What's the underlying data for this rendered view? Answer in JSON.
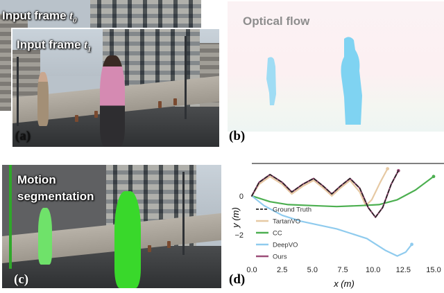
{
  "panels": {
    "a": {
      "label": "(a)",
      "frame0_prefix": "Input frame ",
      "frame0_var": "t",
      "frame0_sub": "0",
      "frame1_prefix": "Input frame ",
      "frame1_var": "t",
      "frame1_sub": "1"
    },
    "b": {
      "label": "(b)",
      "title": "Optical flow"
    },
    "c": {
      "label": "(c)",
      "title_line1": "Motion",
      "title_line2": "segmentation"
    },
    "d": {
      "label": "(d)"
    }
  },
  "colors": {
    "ground_truth": "#222222",
    "tartanvo": "#e6c9a3",
    "cc": "#4caf50",
    "deepvo": "#8fcbee",
    "ours": "#9c4d78",
    "segmentation": "#39d82b",
    "flow_person": "#7fd3f2"
  },
  "chart_data": {
    "type": "line",
    "xlabel": "x (m)",
    "ylabel": "y (m)",
    "xlim": [
      0,
      15
    ],
    "ylim": [
      -3.4,
      1.6
    ],
    "x_ticks": [
      "0.0",
      "2.5",
      "5.0",
      "7.5",
      "10.0",
      "12.5",
      "15.0"
    ],
    "y_ticks": [
      "0",
      "−2"
    ],
    "x_tick_values": [
      0,
      2.5,
      5,
      7.5,
      10,
      12.5,
      15
    ],
    "y_tick_values": [
      0,
      -2
    ],
    "legend_position": "left",
    "series": [
      {
        "name": "Ground Truth",
        "style": "dashed",
        "color": "#222222",
        "points": [
          [
            0,
            0
          ],
          [
            0.6,
            0.7
          ],
          [
            1.5,
            1.1
          ],
          [
            2.5,
            0.7
          ],
          [
            3.3,
            0.2
          ],
          [
            4.2,
            0.6
          ],
          [
            5.1,
            0.9
          ],
          [
            5.9,
            0.5
          ],
          [
            6.6,
            0.1
          ],
          [
            7.3,
            0.5
          ],
          [
            8.1,
            0.9
          ],
          [
            8.9,
            0.4
          ],
          [
            9.6,
            -0.6
          ],
          [
            10.2,
            -1.1
          ],
          [
            10.8,
            -0.6
          ],
          [
            11.5,
            0.6
          ],
          [
            12.1,
            1.3
          ]
        ]
      },
      {
        "name": "TartanVO",
        "style": "solid",
        "color": "#e6c9a3",
        "points": [
          [
            0,
            0
          ],
          [
            0.6,
            0.6
          ],
          [
            1.5,
            1.0
          ],
          [
            2.5,
            0.6
          ],
          [
            3.3,
            0.1
          ],
          [
            4.2,
            0.5
          ],
          [
            5.1,
            0.8
          ],
          [
            5.9,
            0.4
          ],
          [
            6.6,
            0.0
          ],
          [
            7.3,
            0.4
          ],
          [
            8.1,
            0.8
          ],
          [
            8.9,
            0.2
          ],
          [
            9.4,
            -0.5
          ],
          [
            9.9,
            -0.2
          ],
          [
            10.6,
            0.7
          ],
          [
            11.2,
            1.4
          ]
        ]
      },
      {
        "name": "CC",
        "style": "solid",
        "color": "#4caf50",
        "points": [
          [
            0,
            0
          ],
          [
            1.5,
            -0.3
          ],
          [
            3.0,
            -0.45
          ],
          [
            5.0,
            -0.5
          ],
          [
            7.0,
            -0.55
          ],
          [
            9.0,
            -0.5
          ],
          [
            10.5,
            -0.45
          ],
          [
            12.0,
            -0.2
          ],
          [
            13.5,
            0.3
          ],
          [
            15.0,
            1.0
          ]
        ]
      },
      {
        "name": "DeepVO",
        "style": "solid",
        "color": "#8fcbee",
        "points": [
          [
            0,
            0
          ],
          [
            1.0,
            -0.5
          ],
          [
            2.5,
            -1.0
          ],
          [
            4.0,
            -1.3
          ],
          [
            5.5,
            -1.5
          ],
          [
            7.0,
            -1.7
          ],
          [
            8.0,
            -1.9
          ],
          [
            9.5,
            -2.2
          ],
          [
            11.0,
            -2.8
          ],
          [
            12.0,
            -3.1
          ],
          [
            12.7,
            -2.9
          ],
          [
            13.2,
            -2.5
          ]
        ]
      },
      {
        "name": "Ours",
        "style": "solid",
        "color": "#9c4d78",
        "points": [
          [
            0,
            0
          ],
          [
            0.6,
            0.7
          ],
          [
            1.5,
            1.1
          ],
          [
            2.5,
            0.7
          ],
          [
            3.3,
            0.2
          ],
          [
            4.2,
            0.6
          ],
          [
            5.1,
            0.9
          ],
          [
            5.9,
            0.5
          ],
          [
            6.6,
            0.1
          ],
          [
            7.3,
            0.5
          ],
          [
            8.1,
            0.9
          ],
          [
            8.9,
            0.4
          ],
          [
            9.6,
            -0.6
          ],
          [
            10.2,
            -1.1
          ],
          [
            10.8,
            -0.6
          ],
          [
            11.5,
            0.6
          ],
          [
            12.1,
            1.3
          ]
        ]
      }
    ]
  }
}
